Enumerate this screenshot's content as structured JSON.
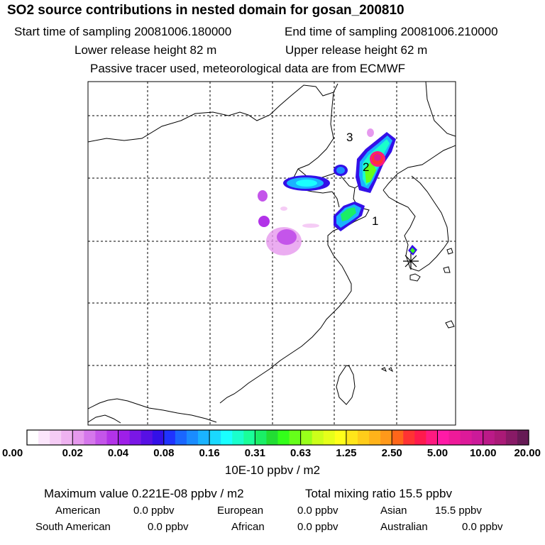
{
  "title": "SO2 source contributions in nested domain for gosan_200810",
  "sampling": {
    "start": "Start time of sampling 20081006.180000",
    "end": "End time of sampling 20081006.210000"
  },
  "release": {
    "lower": "Lower release height   82 m",
    "upper": "Upper release height   62 m"
  },
  "note": "Passive tracer used, meteorological data are from ECMWF",
  "map_labels": {
    "label_1": "1",
    "label_2": "2",
    "label_3": "3"
  },
  "colorbar": {
    "ticks": [
      "0.00",
      "0.02",
      "0.04",
      "0.08",
      "0.16",
      "0.31",
      "0.63",
      "1.25",
      "2.50",
      "5.00",
      "10.00",
      "20.00"
    ],
    "colors": [
      "#ffffff",
      "#fbe6fb",
      "#f5ccf5",
      "#eeb2f0",
      "#e699ee",
      "#d577ec",
      "#c455ea",
      "#b233e8",
      "#9e1fe8",
      "#7a17e6",
      "#5710e4",
      "#3310e8",
      "#1f33ff",
      "#1a66ff",
      "#1a8cff",
      "#1ab3ff",
      "#1ad9ff",
      "#1affff",
      "#1affcc",
      "#1aff99",
      "#1aee66",
      "#22dd33",
      "#33ff1a",
      "#66ff1a",
      "#99ff1a",
      "#ccff1a",
      "#e6ff1a",
      "#ffff1a",
      "#ffe61a",
      "#ffcc1a",
      "#ffb31a",
      "#ff991a",
      "#ff661a",
      "#ff3333",
      "#ff1a4d",
      "#ff1a80",
      "#ff1aa6",
      "#ee1a99",
      "#dd1a99",
      "#cc1a99",
      "#bb1a88",
      "#aa1a77",
      "#881a66",
      "#661a55"
    ],
    "unit": "10E-10 ppbv / m2"
  },
  "summary": {
    "max_value": "Maximum value  0.221E-08 ppbv / m2",
    "total": "Total mixing ratio       15.5 ppbv"
  },
  "regions": [
    {
      "label": "American",
      "value": "0.0 ppbv"
    },
    {
      "label": "European",
      "value": "0.0 ppbv"
    },
    {
      "label": "Asian",
      "value": "15.5 ppbv"
    },
    {
      "label": "South American",
      "value": "0.0 ppbv"
    },
    {
      "label": "African",
      "value": "0.0 ppbv"
    },
    {
      "label": "Australian",
      "value": "0.0 ppbv"
    }
  ]
}
